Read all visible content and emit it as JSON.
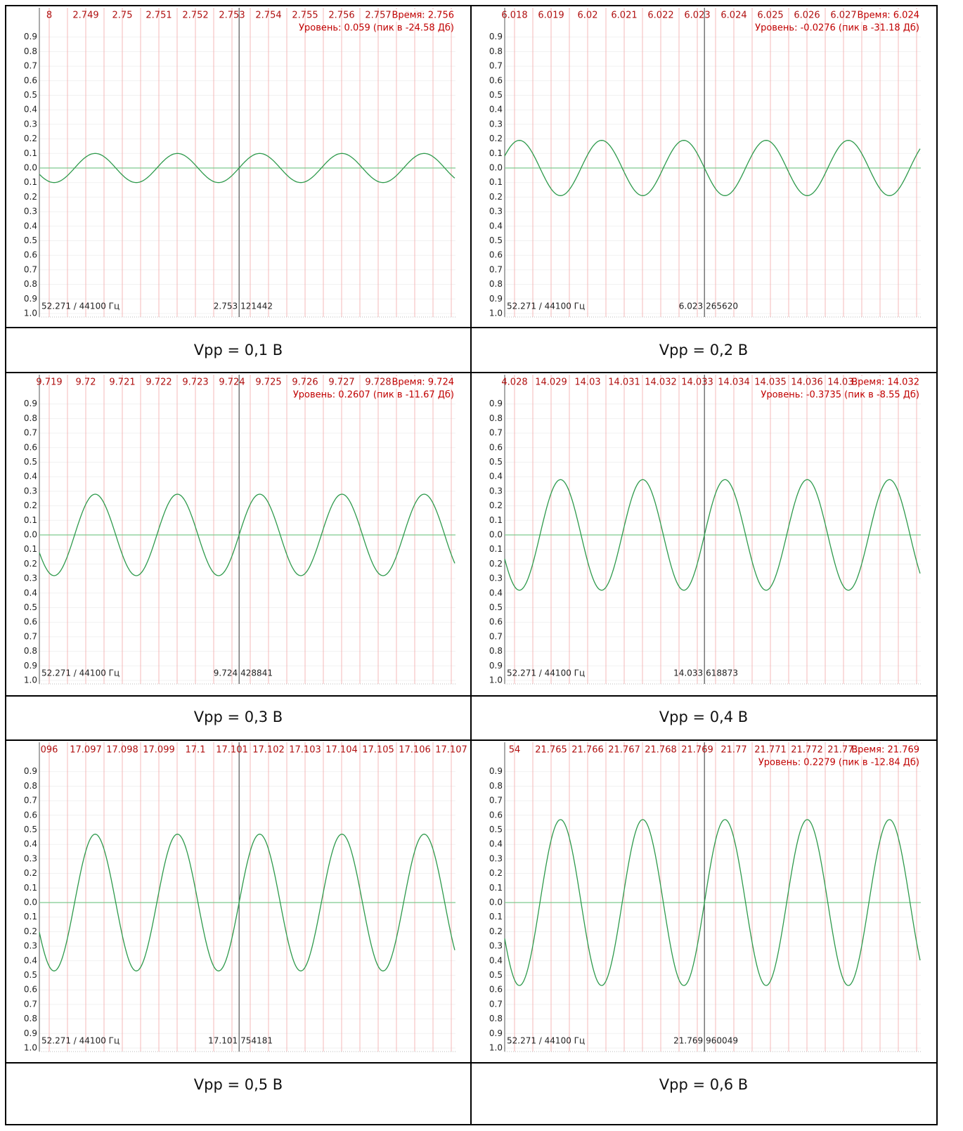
{
  "yticks": [
    {
      "value": 0.9,
      "label": "0.9"
    },
    {
      "value": 0.8,
      "label": "0.8"
    },
    {
      "value": 0.7,
      "label": "0.7"
    },
    {
      "value": 0.6,
      "label": "0.6"
    },
    {
      "value": 0.5,
      "label": "0.5"
    },
    {
      "value": 0.4,
      "label": "0.4"
    },
    {
      "value": 0.3,
      "label": "0.3"
    },
    {
      "value": 0.2,
      "label": "0.2"
    },
    {
      "value": 0.1,
      "label": "0.1"
    },
    {
      "value": 0.0,
      "label": "0.0"
    },
    {
      "value": -0.1,
      "label": "0.1"
    },
    {
      "value": -0.2,
      "label": "0.2"
    },
    {
      "value": -0.3,
      "label": "0.3"
    },
    {
      "value": -0.4,
      "label": "0.4"
    },
    {
      "value": -0.5,
      "label": "0.5"
    },
    {
      "value": -0.6,
      "label": "0.6"
    },
    {
      "value": -0.7,
      "label": "0.7"
    },
    {
      "value": -0.8,
      "label": "0.8"
    },
    {
      "value": -0.9,
      "label": "0.9"
    },
    {
      "value": -1.0,
      "label": "1.0"
    }
  ],
  "panels": [
    {
      "xticks": [
        "8",
        "2.749",
        "2.75",
        "2.751",
        "2.752",
        "2.753",
        "2.754",
        "2.755",
        "2.756",
        "2.757",
        "2.75"
      ],
      "time": "Время: 2.756",
      "level": "Уровень: 0.059 (пик в -24.58 Дб)",
      "footer": "52.271 / 44100 Гц",
      "cursor": "2.753",
      "sample": "121442",
      "peak": 0.1,
      "caption": "Vpp = 0,1 В"
    },
    {
      "xticks": [
        "6.018",
        "6.019",
        "6.02",
        "6.021",
        "6.022",
        "6.023",
        "6.024",
        "6.025",
        "6.026",
        "6.027"
      ],
      "time": "Время: 6.024",
      "level": "Уровень: -0.0276 (пик в -31.18 Дб)",
      "footer": "52.271 / 44100 Гц",
      "cursor": "6.023",
      "sample": "265620",
      "peak": 0.19,
      "caption": "Vpp = 0,2 В"
    },
    {
      "xticks": [
        "9.719",
        "9.72",
        "9.721",
        "9.722",
        "9.723",
        "9.724",
        "9.725",
        "9.726",
        "9.727",
        "9.728"
      ],
      "time": "Время: 9.724",
      "level": "Уровень: 0.2607 (пик в -11.67 Дб)",
      "footer": "52.271 / 44100 Гц",
      "cursor": "9.724",
      "sample": "428841",
      "peak": 0.28,
      "caption": "Vpp = 0,3 В"
    },
    {
      "xticks": [
        "4.028",
        "14.029",
        "14.03",
        "14.031",
        "14.032",
        "14.033",
        "14.034",
        "14.035",
        "14.036",
        "14.037"
      ],
      "time": "Время: 14.032",
      "level": "Уровень: -0.3735 (пик в -8.55 Дб)",
      "footer": "52.271 / 44100 Гц",
      "cursor": "14.033",
      "sample": "618873",
      "peak": 0.38,
      "caption": "Vpp = 0,4 В"
    },
    {
      "xticks": [
        "096",
        "17.097",
        "17.098",
        "17.099",
        "17.1",
        "17.101",
        "17.102",
        "17.103",
        "17.104",
        "17.105",
        "17.106",
        "17.107"
      ],
      "footer": "52.271 / 44100 Гц",
      "cursor": "17.101",
      "sample": "754181",
      "peak": 0.47,
      "caption": "Vpp = 0,5 В"
    },
    {
      "xticks": [
        "54",
        "21.765",
        "21.766",
        "21.767",
        "21.768",
        "21.769",
        "21.77",
        "21.771",
        "21.772",
        "21.773"
      ],
      "time": "Время: 21.769",
      "level": "Уровень: 0.2279 (пик в -12.84 Дб)",
      "footer": "52.271 / 44100 Гц",
      "cursor": "21.769",
      "sample": "960049",
      "peak": 0.57,
      "caption": "Vpp = 0,6 В"
    }
  ]
}
